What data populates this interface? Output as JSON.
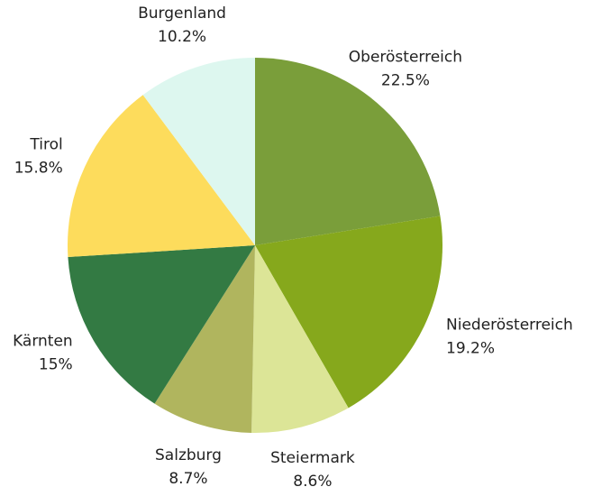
{
  "chart_data": {
    "type": "pie",
    "categories": [
      "Oberösterreich",
      "Niederösterreich",
      "Steiermark",
      "Salzburg",
      "Kärnten",
      "Tirol",
      "Burgenland"
    ],
    "values": [
      22.5,
      19.2,
      8.6,
      8.7,
      15,
      15.8,
      10.2
    ],
    "value_labels": [
      "22.5%",
      "19.2%",
      "8.6%",
      "8.7%",
      "15%",
      "15.8%",
      "10.2%"
    ],
    "colors": [
      "#7a9e3a",
      "#86a81c",
      "#dce597",
      "#b0b55e",
      "#337a43",
      "#fddc5c",
      "#ddf7ef"
    ]
  }
}
